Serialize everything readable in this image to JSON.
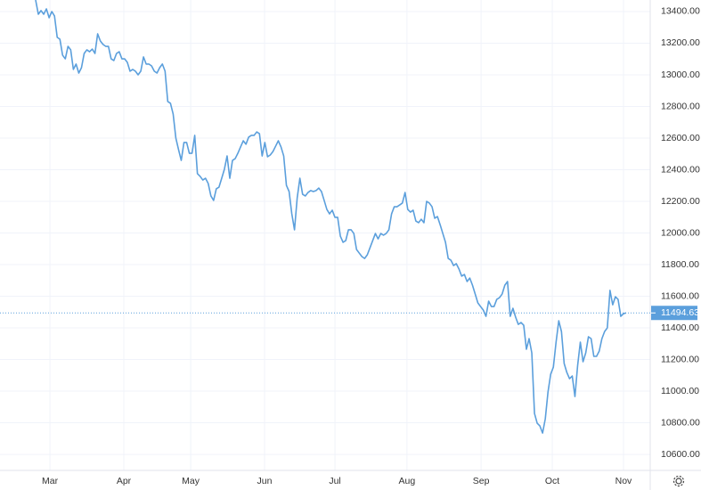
{
  "chart_data": {
    "type": "line",
    "color": "#5b9fdc",
    "grid": true,
    "price_line": true,
    "values": [
      13473,
      13383,
      13406,
      13383,
      13417,
      13361,
      13400,
      13372,
      13237,
      13225,
      13124,
      13101,
      13180,
      13158,
      13034,
      13068,
      13011,
      13045,
      13135,
      13158,
      13146,
      13163,
      13135,
      13259,
      13214,
      13192,
      13180,
      13180,
      13101,
      13090,
      13135,
      13146,
      13101,
      13101,
      13079,
      13023,
      13034,
      13023,
      13000,
      13023,
      13113,
      13068,
      13068,
      13056,
      13023,
      13011,
      13045,
      13068,
      13023,
      12831,
      12820,
      12752,
      12600,
      12527,
      12459,
      12572,
      12572,
      12504,
      12504,
      12617,
      12375,
      12358,
      12335,
      12346,
      12313,
      12234,
      12206,
      12279,
      12290,
      12346,
      12403,
      12487,
      12346,
      12459,
      12470,
      12504,
      12544,
      12583,
      12561,
      12606,
      12617,
      12617,
      12639,
      12628,
      12487,
      12572,
      12482,
      12493,
      12515,
      12549,
      12583,
      12544,
      12487,
      12301,
      12262,
      12121,
      12020,
      12222,
      12346,
      12245,
      12234,
      12256,
      12268,
      12262,
      12268,
      12284,
      12262,
      12206,
      12149,
      12121,
      12144,
      12099,
      12099,
      11980,
      11941,
      11952,
      12020,
      12020,
      11997,
      11896,
      11873,
      11851,
      11839,
      11862,
      11907,
      11952,
      11997,
      11963,
      11997,
      11986,
      11997,
      12020,
      12121,
      12166,
      12166,
      12177,
      12189,
      12256,
      12149,
      12132,
      12144,
      12076,
      12065,
      12087,
      12065,
      12200,
      12189,
      12166,
      12093,
      12104,
      12053,
      11997,
      11941,
      11839,
      11828,
      11794,
      11806,
      11772,
      11727,
      11738,
      11693,
      11715,
      11670,
      11614,
      11558,
      11535,
      11513,
      11473,
      11569,
      11535,
      11535,
      11580,
      11591,
      11614,
      11670,
      11693,
      11473,
      11524,
      11468,
      11422,
      11434,
      11417,
      11265,
      11332,
      11242,
      10859,
      10797,
      10780,
      10735,
      10825,
      10994,
      11107,
      11152,
      11310,
      11445,
      11377,
      11175,
      11118,
      11079,
      11096,
      10966,
      11163,
      11310,
      11186,
      11242,
      11344,
      11332,
      11220,
      11220,
      11253,
      11332,
      11377,
      11400,
      11637,
      11546,
      11597,
      11580,
      11473,
      11490,
      11494.63
    ],
    "xticks": [
      {
        "value": 5.3,
        "label": "Mar"
      },
      {
        "value": 32.7,
        "label": "Apr"
      },
      {
        "value": 57.5,
        "label": "May"
      },
      {
        "value": 84.9,
        "label": "Jun"
      },
      {
        "value": 111,
        "label": "Jul"
      },
      {
        "value": 137.7,
        "label": "Aug"
      },
      {
        "value": 165.2,
        "label": "Sep"
      },
      {
        "value": 191.6,
        "label": "Oct"
      },
      {
        "value": 218,
        "label": "Nov"
      }
    ],
    "ylim": [
      10499,
      13473
    ],
    "yticks": [
      {
        "value": 10600,
        "label": "10600.00"
      },
      {
        "value": 10800,
        "label": "10800.00"
      },
      {
        "value": 11000,
        "label": "11000.00"
      },
      {
        "value": 11200,
        "label": "11200.00"
      },
      {
        "value": 11400,
        "label": "11400.00"
      },
      {
        "value": 11600,
        "label": "11600.00"
      },
      {
        "value": 11800,
        "label": "11800.00"
      },
      {
        "value": 12000,
        "label": "12000.00"
      },
      {
        "value": 12200,
        "label": "12200.00"
      },
      {
        "value": 12400,
        "label": "12400.00"
      },
      {
        "value": 12600,
        "label": "12600.00"
      },
      {
        "value": 12800,
        "label": "12800.00"
      },
      {
        "value": 13000,
        "label": "13000.00"
      },
      {
        "value": 13200,
        "label": "13200.00"
      },
      {
        "value": 13400,
        "label": "13400.00"
      }
    ]
  }
}
